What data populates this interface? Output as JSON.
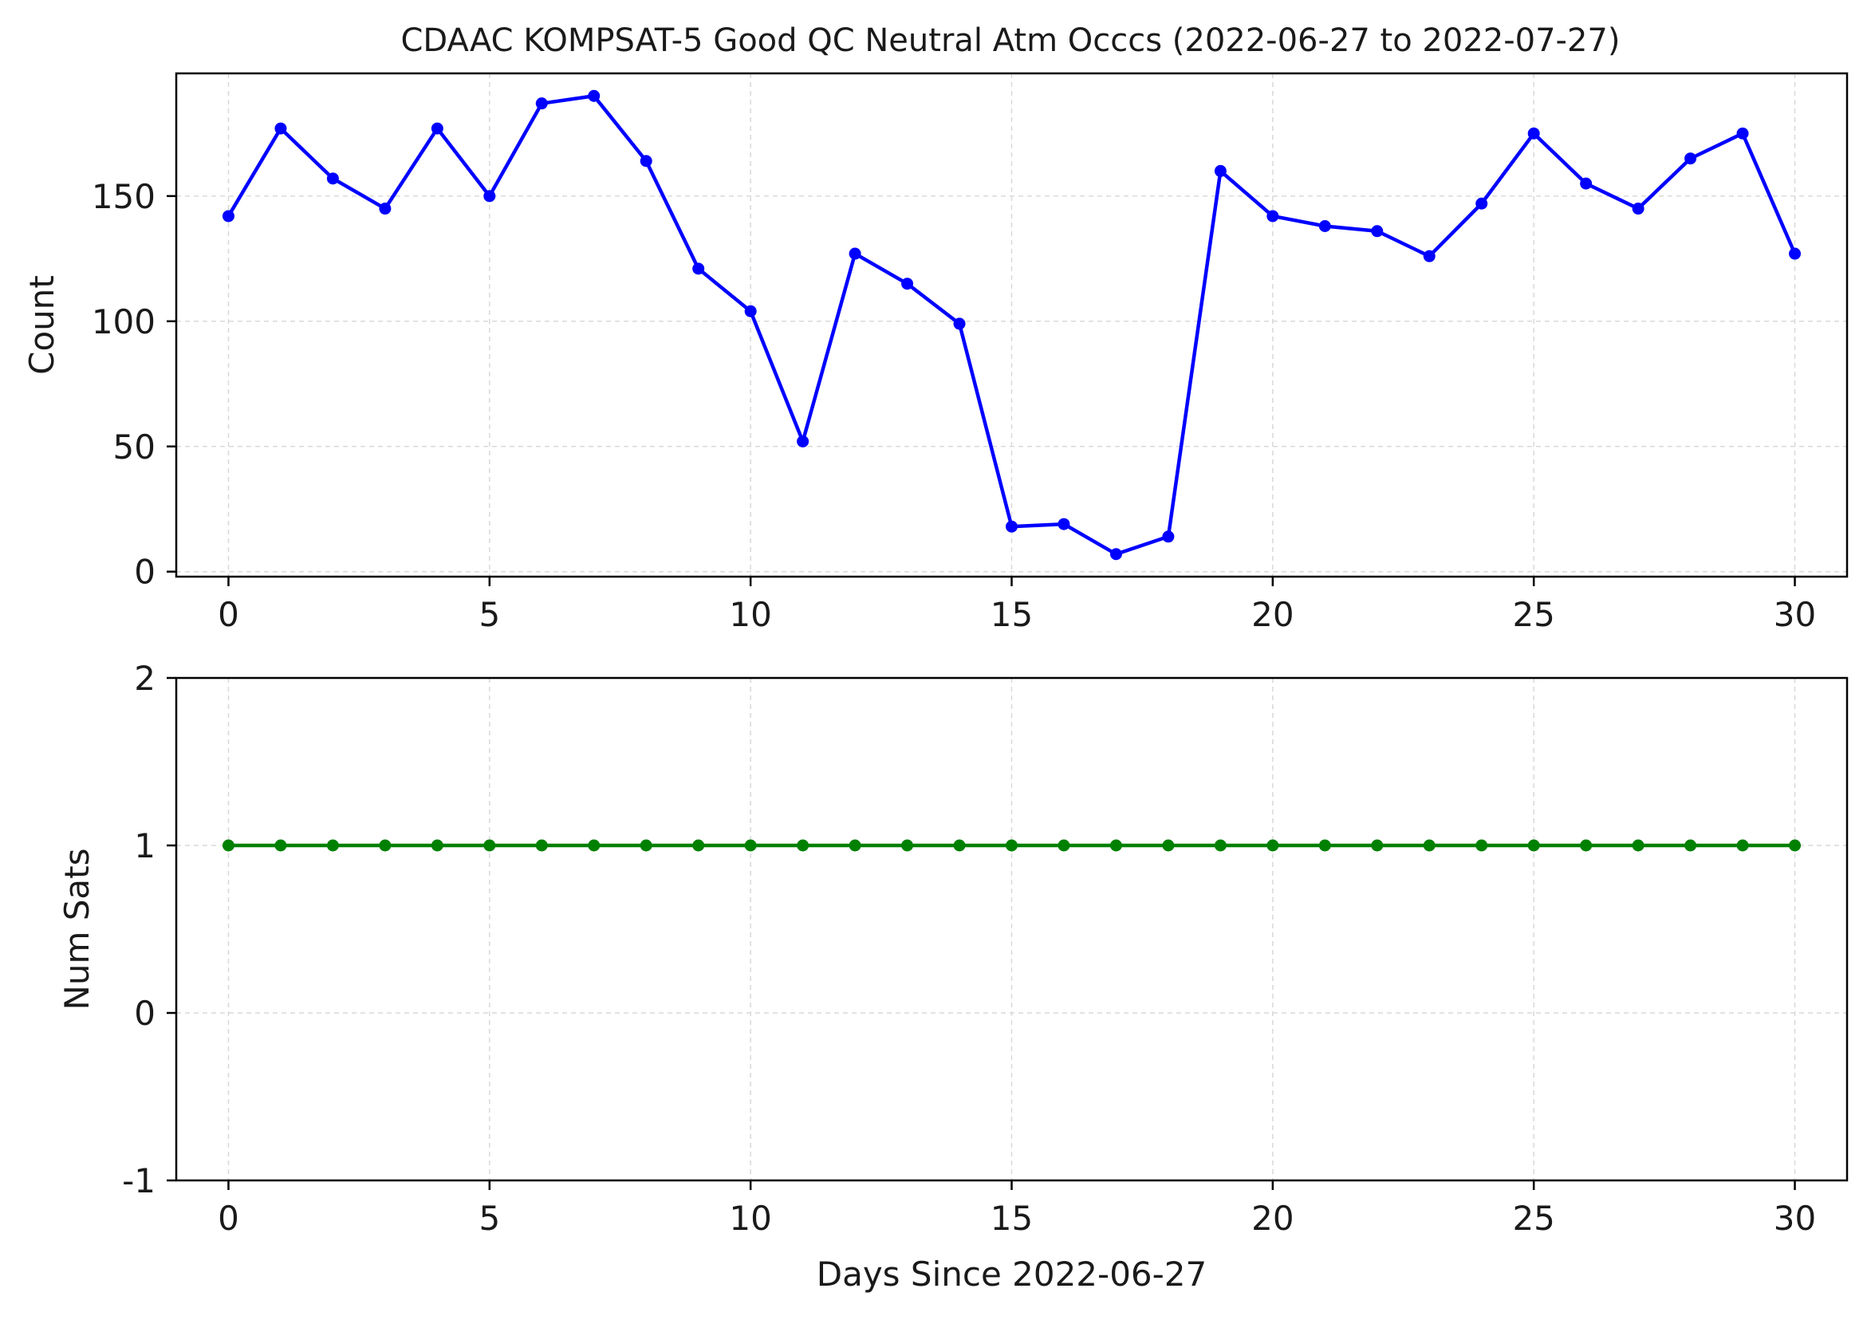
{
  "chart_data": [
    {
      "type": "line",
      "title": "CDAAC KOMPSAT-5 Good QC Neutral Atm Occcs (2022-06-27 to 2022-07-27)",
      "xlabel": "",
      "ylabel": "Count",
      "x": [
        0,
        1,
        2,
        3,
        4,
        5,
        6,
        7,
        8,
        9,
        10,
        11,
        12,
        13,
        14,
        15,
        16,
        17,
        18,
        19,
        20,
        21,
        22,
        23,
        24,
        25,
        26,
        27,
        28,
        29,
        30
      ],
      "series": [
        {
          "values": [
            142,
            177,
            157,
            145,
            177,
            150,
            187,
            190,
            164,
            121,
            104,
            52,
            127,
            115,
            99,
            18,
            19,
            7,
            14,
            160,
            142,
            138,
            136,
            126,
            147,
            175,
            155,
            145,
            165,
            175,
            127
          ],
          "color": "#0000ff",
          "marker": "circle"
        }
      ],
      "xlim": [
        -1,
        31
      ],
      "ylim": [
        -2,
        199
      ],
      "xticks": [
        "0",
        "5",
        "10",
        "15",
        "20",
        "25",
        "30"
      ],
      "yticks": [
        "0",
        "50",
        "100",
        "150"
      ],
      "grid": true
    },
    {
      "type": "line",
      "title": "",
      "xlabel": "Days Since 2022-06-27",
      "ylabel": "Num Sats",
      "x": [
        0,
        1,
        2,
        3,
        4,
        5,
        6,
        7,
        8,
        9,
        10,
        11,
        12,
        13,
        14,
        15,
        16,
        17,
        18,
        19,
        20,
        21,
        22,
        23,
        24,
        25,
        26,
        27,
        28,
        29,
        30
      ],
      "series": [
        {
          "values": [
            1,
            1,
            1,
            1,
            1,
            1,
            1,
            1,
            1,
            1,
            1,
            1,
            1,
            1,
            1,
            1,
            1,
            1,
            1,
            1,
            1,
            1,
            1,
            1,
            1,
            1,
            1,
            1,
            1,
            1,
            1
          ],
          "color": "#008000",
          "marker": "circle"
        }
      ],
      "xlim": [
        -1,
        31
      ],
      "ylim": [
        -1,
        2
      ],
      "xticks": [
        "0",
        "5",
        "10",
        "15",
        "20",
        "25",
        "30"
      ],
      "yticks": [
        "-1",
        "0",
        "1",
        "2"
      ],
      "grid": true
    }
  ]
}
